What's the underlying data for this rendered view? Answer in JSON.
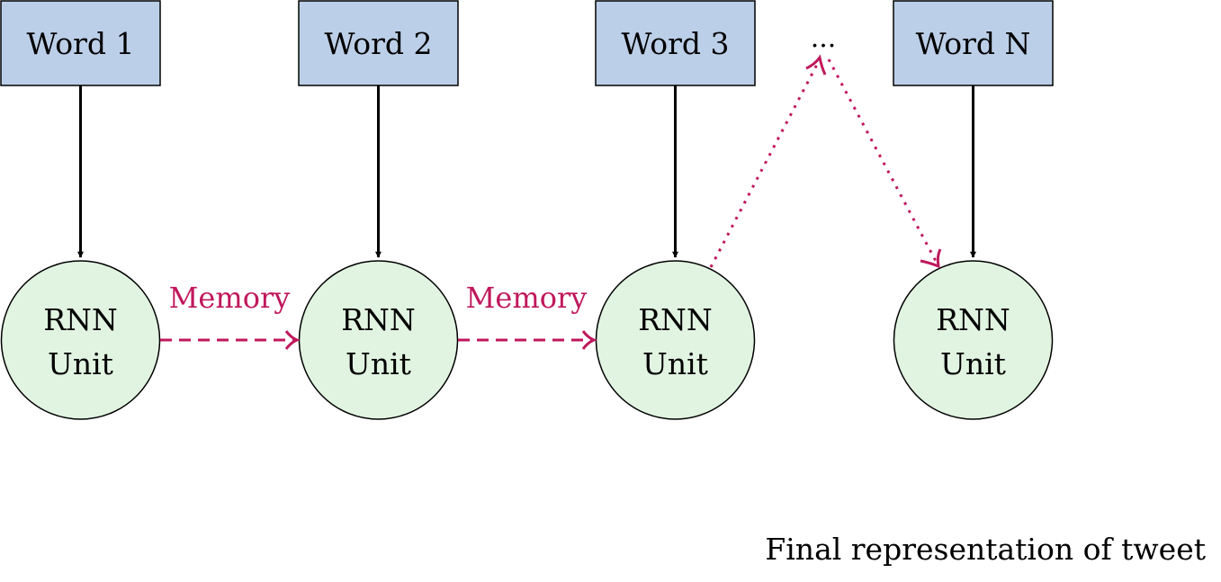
{
  "colors": {
    "word_fill": "#bccfe8",
    "unit_fill": "#e1f3e1",
    "memory_color": "#c0185c",
    "stroke": "#000000"
  },
  "words": [
    {
      "label": "Word 1"
    },
    {
      "label": "Word 2"
    },
    {
      "label": "Word 3"
    },
    {
      "label": "Word N"
    }
  ],
  "ellipsis": "...",
  "units": [
    {
      "line1": "RNN",
      "line2": "Unit"
    },
    {
      "line1": "RNN",
      "line2": "Unit"
    },
    {
      "line1": "RNN",
      "line2": "Unit"
    },
    {
      "line1": "RNN",
      "line2": "Unit"
    }
  ],
  "memory_labels": [
    "Memory",
    "Memory"
  ],
  "caption": "Final representation of tweet"
}
